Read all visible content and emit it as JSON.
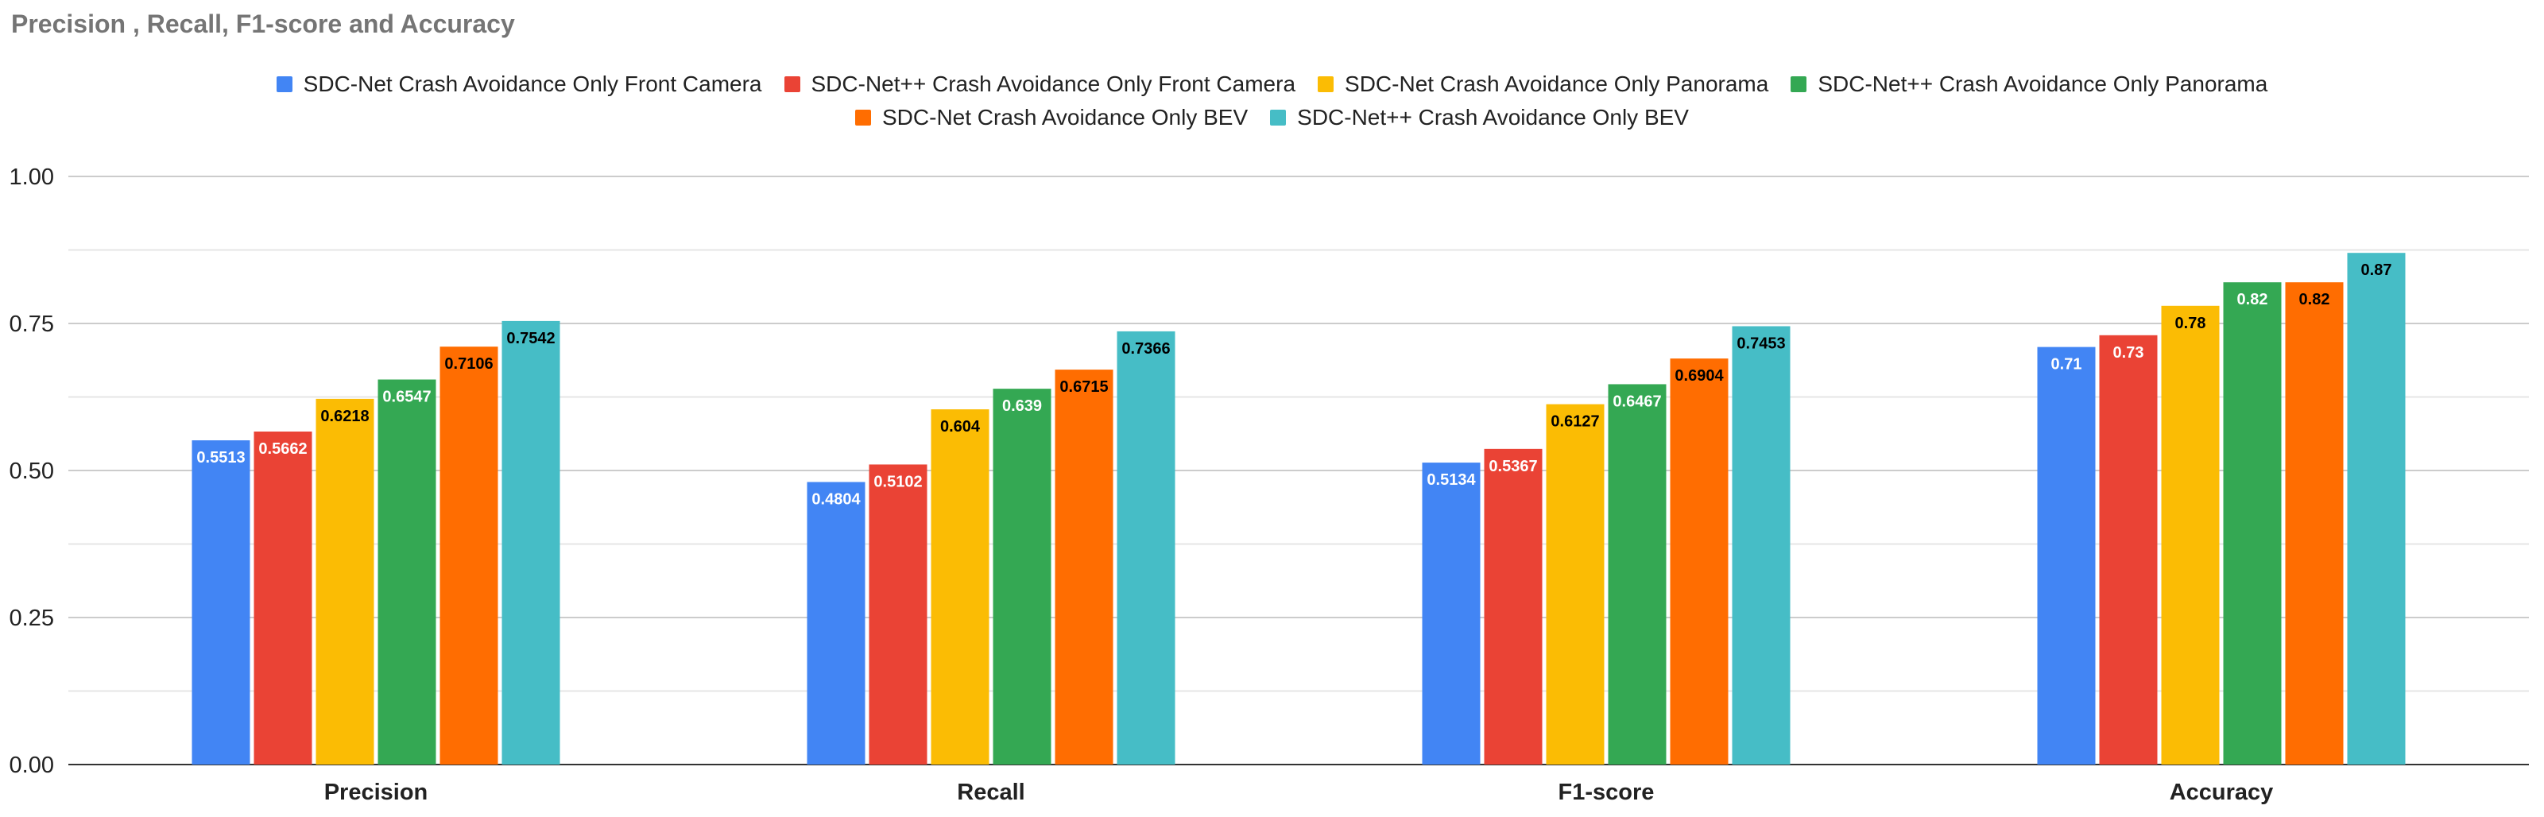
{
  "chart_data": {
    "type": "bar",
    "title": "Precision , Recall, F1-score and Accuracy",
    "xlabel": "",
    "ylabel": "",
    "ylim": [
      0,
      1
    ],
    "yticks": [
      "0.00",
      "0.25",
      "0.50",
      "0.75",
      "1.00"
    ],
    "ytick_values": [
      0,
      0.25,
      0.5,
      0.75,
      1.0
    ],
    "grid": true,
    "legend_position": "top-center",
    "categories": [
      "Precision",
      "Recall",
      "F1-score",
      "Accuracy"
    ],
    "series": [
      {
        "name": "SDC-Net Crash Avoidance Only Front Camera",
        "color": "#4285f4",
        "label_color": "#ffffff",
        "values": [
          0.5513,
          0.4804,
          0.5134,
          0.71
        ],
        "labels": [
          "0.5513",
          "0.4804",
          "0.5134",
          "0.71"
        ]
      },
      {
        "name": "SDC-Net++ Crash Avoidance Only Front Camera",
        "color": "#ea4335",
        "label_color": "#ffffff",
        "values": [
          0.5662,
          0.5102,
          0.5367,
          0.73
        ],
        "labels": [
          "0.5662",
          "0.5102",
          "0.5367",
          "0.73"
        ]
      },
      {
        "name": "SDC-Net Crash Avoidance Only Panorama",
        "color": "#fbbc04",
        "label_color": "#000000",
        "values": [
          0.6218,
          0.604,
          0.6127,
          0.78
        ],
        "labels": [
          "0.6218",
          "0.604",
          "0.6127",
          "0.78"
        ]
      },
      {
        "name": "SDC-Net++ Crash Avoidance Only Panorama",
        "color": "#34a853",
        "label_color": "#ffffff",
        "values": [
          0.6547,
          0.639,
          0.6467,
          0.82
        ],
        "labels": [
          "0.6547",
          "0.639",
          "0.6467",
          "0.82"
        ]
      },
      {
        "name": "SDC-Net Crash Avoidance Only BEV",
        "color": "#ff6d01",
        "label_color": "#000000",
        "values": [
          0.7106,
          0.6715,
          0.6904,
          0.82
        ],
        "labels": [
          "0.7106",
          "0.6715",
          "0.6904",
          "0.82"
        ]
      },
      {
        "name": "SDC-Net++ Crash Avoidance Only BEV",
        "color": "#46bdc6",
        "label_color": "#000000",
        "values": [
          0.7542,
          0.7366,
          0.7453,
          0.87
        ],
        "labels": [
          "0.7542",
          "0.7366",
          "0.7453",
          "0.87"
        ]
      }
    ]
  }
}
